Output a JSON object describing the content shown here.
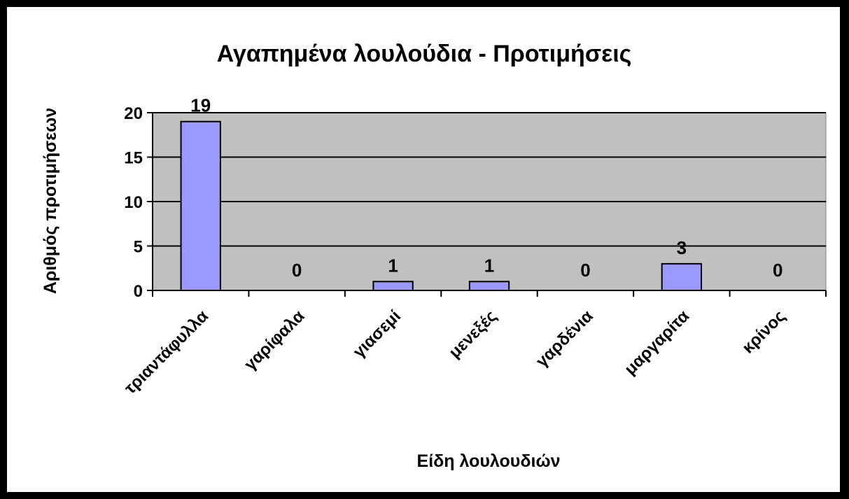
{
  "chart_data": {
    "type": "bar",
    "title": "Αγαπημένα λουλούδια - Προτιμήσεις",
    "xlabel": "Είδη λουλουδιών",
    "ylabel": "Αριθμός προτιμήσεων",
    "categories": [
      "τριαντάφυλλα",
      "γαρίφαλα",
      "γιασεμί",
      "μενεξές",
      "γαρδένια",
      "μαργαρίτα",
      "κρίνος"
    ],
    "values": [
      19,
      0,
      1,
      1,
      0,
      3,
      0
    ],
    "data_labels": [
      "19",
      "0",
      "1",
      "1",
      "0",
      "3",
      "0"
    ],
    "ylim": [
      0,
      20
    ],
    "yticks": [
      "0",
      "5",
      "10",
      "15",
      "20"
    ],
    "grid": true,
    "legend": "none",
    "colors": {
      "bar_fill": "#9999ff",
      "bar_stroke": "#000000",
      "plot_background": "#c0c0c0",
      "frame": "#000000",
      "chart_background": "#ffffff"
    }
  }
}
